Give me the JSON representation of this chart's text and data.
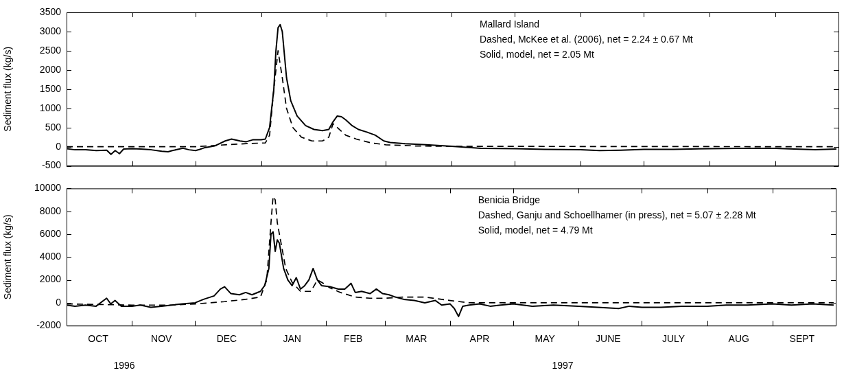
{
  "chart_data": [
    {
      "type": "line",
      "ylabel": "Sediment flux (kg/s)",
      "tick_labels": "y",
      "grid": false,
      "legend": false,
      "marker": "none",
      "annotations": [
        "Mallard Island",
        "Dashed, McKee et al. (2006), net = 2.24 ± 0.67 Mt",
        "Solid, model, net = 2.05 Mt"
      ],
      "xlim": [
        "1996-10-01",
        "1997-10-01"
      ],
      "xticks": [
        {
          "value": "1996-10-01",
          "label": null
        },
        {
          "value": "1996-11-01",
          "label": null
        },
        {
          "value": "1996-12-01",
          "label": null
        },
        {
          "value": "1997-01-01",
          "label": null
        },
        {
          "value": "1997-02-01",
          "label": null
        },
        {
          "value": "1997-03-01",
          "label": null
        },
        {
          "value": "1997-04-01",
          "label": null
        },
        {
          "value": "1997-05-01",
          "label": null
        },
        {
          "value": "1997-06-01",
          "label": null
        },
        {
          "value": "1997-07-01",
          "label": null
        },
        {
          "value": "1997-08-01",
          "label": null
        },
        {
          "value": "1997-09-01",
          "label": null
        },
        {
          "value": "1997-10-01",
          "label": null
        }
      ],
      "ylim": [
        -500,
        3500
      ],
      "yticks": [
        -500,
        0,
        500,
        1000,
        1500,
        2000,
        2500,
        3000,
        3500
      ],
      "series": [
        {
          "color": "#000000",
          "line_style": "dashed",
          "x": [
            "1996-10-01",
            "1996-12-01",
            "1996-12-15",
            "1996-12-25",
            "1997-01-03",
            "1997-01-05",
            "1997-01-07",
            "1997-01-09",
            "1997-01-11",
            "1997-01-13",
            "1997-01-16",
            "1997-01-20",
            "1997-01-25",
            "1997-01-30",
            "1997-02-02",
            "1997-02-04",
            "1997-02-06",
            "1997-02-10",
            "1997-02-15",
            "1997-02-22",
            "1997-03-01",
            "1997-03-15",
            "1997-04-01",
            "1997-09-30"
          ],
          "values": [
            0,
            0,
            50,
            80,
            100,
            300,
            1500,
            2500,
            1800,
            1000,
            500,
            250,
            150,
            150,
            250,
            600,
            500,
            300,
            200,
            100,
            50,
            20,
            10,
            0
          ]
        },
        {
          "color": "#000000",
          "line_style": "solid",
          "x": [
            "1996-10-01",
            "1996-10-05",
            "1996-10-10",
            "1996-10-15",
            "1996-10-20",
            "1996-10-22",
            "1996-10-24",
            "1996-10-26",
            "1996-10-28",
            "1996-11-01",
            "1996-11-05",
            "1996-11-10",
            "1996-11-15",
            "1996-11-18",
            "1996-11-20",
            "1996-11-25",
            "1996-11-28",
            "1996-12-01",
            "1996-12-03",
            "1996-12-05",
            "1996-12-10",
            "1996-12-15",
            "1996-12-18",
            "1996-12-22",
            "1996-12-25",
            "1996-12-28",
            "1997-01-01",
            "1997-01-03",
            "1997-01-05",
            "1997-01-07",
            "1997-01-08",
            "1997-01-09",
            "1997-01-10",
            "1997-01-11",
            "1997-01-12",
            "1997-01-13",
            "1997-01-15",
            "1997-01-18",
            "1997-01-22",
            "1997-01-26",
            "1997-01-30",
            "1997-02-02",
            "1997-02-04",
            "1997-02-06",
            "1997-02-08",
            "1997-02-10",
            "1997-02-13",
            "1997-02-16",
            "1997-02-20",
            "1997-02-24",
            "1997-02-28",
            "1997-03-03",
            "1997-03-10",
            "1997-03-20",
            "1997-04-01",
            "1997-04-15",
            "1997-05-01",
            "1997-05-15",
            "1997-06-01",
            "1997-06-10",
            "1997-06-20",
            "1997-07-01",
            "1997-07-15",
            "1997-08-01",
            "1997-08-15",
            "1997-09-01",
            "1997-09-10",
            "1997-09-20",
            "1997-09-30"
          ],
          "values": [
            -50,
            -80,
            -80,
            -100,
            -90,
            -200,
            -100,
            -180,
            -60,
            -50,
            -60,
            -80,
            -120,
            -130,
            -100,
            -40,
            -80,
            -100,
            -70,
            -30,
            20,
            150,
            200,
            150,
            130,
            180,
            180,
            200,
            500,
            1500,
            2500,
            3100,
            3180,
            3000,
            2400,
            1800,
            1200,
            800,
            550,
            450,
            420,
            450,
            650,
            800,
            780,
            700,
            550,
            450,
            380,
            300,
            150,
            110,
            80,
            50,
            10,
            -40,
            -50,
            -70,
            -80,
            -100,
            -90,
            -70,
            -70,
            -50,
            -40,
            -40,
            -60,
            -80,
            -60
          ]
        }
      ]
    },
    {
      "type": "line",
      "ylabel": "Sediment flux (kg/s)",
      "grid": false,
      "legend": false,
      "marker": "none",
      "annotations": [
        "Benicia Bridge",
        "Dashed, Ganju and Schoellhamer (in press), net = 5.07 ± 2.28 Mt",
        "Solid, model, net = 4.79 Mt",
        "1996",
        "1997"
      ],
      "xlim": [
        "1996-10-01",
        "1997-10-01"
      ],
      "xticks": [
        {
          "value": "1996-10-01",
          "label": null
        },
        {
          "value": "1996-10-16",
          "label": "OCT"
        },
        {
          "value": "1996-11-01",
          "label": null
        },
        {
          "value": "1996-11-15",
          "label": "NOV"
        },
        {
          "value": "1996-12-01",
          "label": null
        },
        {
          "value": "1996-12-16",
          "label": "DEC"
        },
        {
          "value": "1997-01-01",
          "label": null
        },
        {
          "value": "1997-01-16",
          "label": "JAN"
        },
        {
          "value": "1997-02-01",
          "label": null
        },
        {
          "value": "1997-02-14",
          "label": "FEB"
        },
        {
          "value": "1997-03-01",
          "label": null
        },
        {
          "value": "1997-03-16",
          "label": "MAR"
        },
        {
          "value": "1997-04-01",
          "label": null
        },
        {
          "value": "1997-04-15",
          "label": "APR"
        },
        {
          "value": "1997-05-01",
          "label": null
        },
        {
          "value": "1997-05-16",
          "label": "MAY"
        },
        {
          "value": "1997-06-01",
          "label": null
        },
        {
          "value": "1997-06-15",
          "label": "JUNE"
        },
        {
          "value": "1997-07-01",
          "label": null
        },
        {
          "value": "1997-07-16",
          "label": "JULY"
        },
        {
          "value": "1997-08-01",
          "label": null
        },
        {
          "value": "1997-08-16",
          "label": "AUG"
        },
        {
          "value": "1997-09-01",
          "label": null
        },
        {
          "value": "1997-09-15",
          "label": "SEPT"
        },
        {
          "value": "1997-10-01",
          "label": null
        }
      ],
      "ylim": [
        -2000,
        10000
      ],
      "yticks": [
        -2000,
        0,
        2000,
        4000,
        6000,
        8000,
        10000
      ],
      "series": [
        {
          "color": "#000000",
          "line_style": "dashed",
          "x": [
            "1996-10-01",
            "1996-11-01",
            "1996-11-20",
            "1996-12-01",
            "1996-12-15",
            "1996-12-25",
            "1997-01-01",
            "1997-01-04",
            "1997-01-06",
            "1997-01-07",
            "1997-01-08",
            "1997-01-09",
            "1997-01-11",
            "1997-01-13",
            "1997-01-16",
            "1997-01-20",
            "1997-01-25",
            "1997-01-28",
            "1997-01-30",
            "1997-02-03",
            "1997-02-08",
            "1997-02-15",
            "1997-02-22",
            "1997-03-01",
            "1997-03-10",
            "1997-03-20",
            "1997-04-01",
            "1997-04-10",
            "1997-09-30"
          ],
          "values": [
            -100,
            -200,
            -200,
            -100,
            100,
            300,
            500,
            2000,
            7000,
            9300,
            9000,
            7000,
            5000,
            3000,
            1800,
            1000,
            1000,
            2000,
            1800,
            1300,
            900,
            500,
            400,
            400,
            500,
            500,
            200,
            0,
            0
          ]
        },
        {
          "color": "#000000",
          "line_style": "solid",
          "x": [
            "1996-10-01",
            "1996-10-05",
            "1996-10-10",
            "1996-10-15",
            "1996-10-20",
            "1996-10-22",
            "1996-10-24",
            "1996-10-27",
            "1996-11-01",
            "1996-11-05",
            "1996-11-10",
            "1996-11-15",
            "1996-11-20",
            "1996-11-25",
            "1996-12-01",
            "1996-12-05",
            "1996-12-10",
            "1996-12-13",
            "1996-12-15",
            "1996-12-18",
            "1996-12-22",
            "1996-12-25",
            "1996-12-28",
            "1997-01-01",
            "1997-01-03",
            "1997-01-05",
            "1997-01-06",
            "1997-01-07",
            "1997-01-08",
            "1997-01-09",
            "1997-01-10",
            "1997-01-12",
            "1997-01-14",
            "1997-01-16",
            "1997-01-18",
            "1997-01-20",
            "1997-01-22",
            "1997-01-24",
            "1997-01-26",
            "1997-01-28",
            "1997-01-30",
            "1997-02-03",
            "1997-02-07",
            "1997-02-10",
            "1997-02-13",
            "1997-02-15",
            "1997-02-18",
            "1997-02-22",
            "1997-02-25",
            "1997-02-28",
            "1997-03-03",
            "1997-03-06",
            "1997-03-10",
            "1997-03-15",
            "1997-03-20",
            "1997-03-25",
            "1997-03-28",
            "1997-04-01",
            "1997-04-03",
            "1997-04-05",
            "1997-04-07",
            "1997-04-10",
            "1997-04-15",
            "1997-04-20",
            "1997-04-25",
            "1997-05-01",
            "1997-05-10",
            "1997-05-20",
            "1997-06-01",
            "1997-06-10",
            "1997-06-20",
            "1997-06-25",
            "1997-07-01",
            "1997-07-10",
            "1997-07-20",
            "1997-08-01",
            "1997-08-10",
            "1997-08-20",
            "1997-09-01",
            "1997-09-10",
            "1997-09-20",
            "1997-09-30"
          ],
          "values": [
            -200,
            -300,
            -200,
            -300,
            400,
            -100,
            200,
            -300,
            -300,
            -200,
            -400,
            -300,
            -200,
            -100,
            0,
            300,
            600,
            1200,
            1400,
            800,
            700,
            900,
            700,
            1000,
            1500,
            3000,
            6000,
            6200,
            4500,
            5500,
            5200,
            3000,
            2000,
            1500,
            2200,
            1200,
            1500,
            2000,
            3000,
            2000,
            1500,
            1400,
            1200,
            1200,
            1700,
            900,
            1000,
            800,
            1200,
            800,
            700,
            500,
            300,
            200,
            0,
            200,
            -200,
            -100,
            -500,
            -1200,
            -300,
            -200,
            -100,
            -300,
            -200,
            -100,
            -300,
            -200,
            -300,
            -400,
            -500,
            -300,
            -400,
            -400,
            -300,
            -300,
            -200,
            -200,
            -100,
            -200,
            -100,
            -200
          ]
        }
      ]
    }
  ]
}
